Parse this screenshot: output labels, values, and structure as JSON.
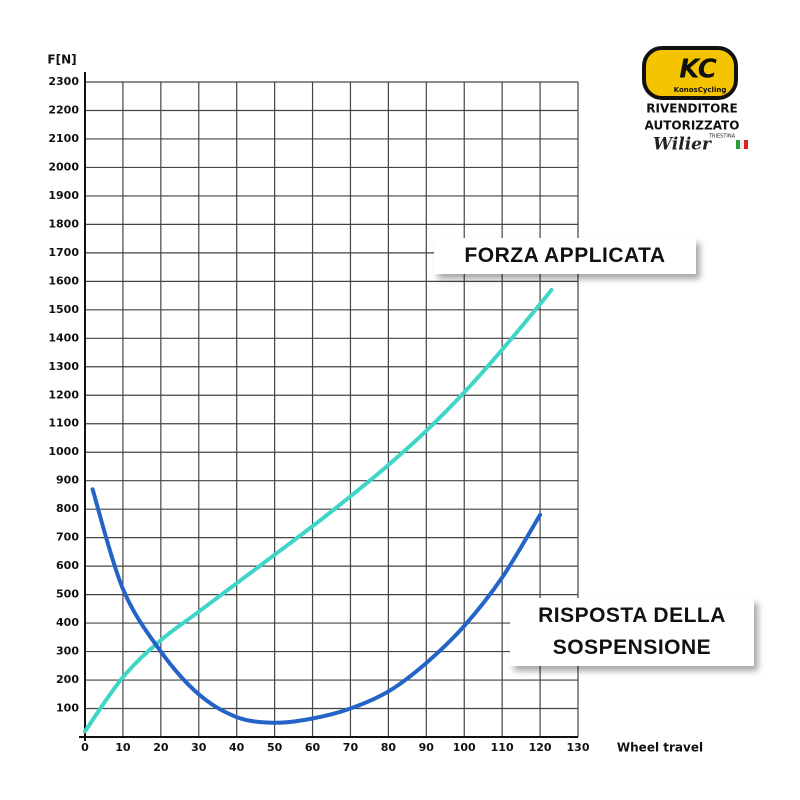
{
  "chart_data": {
    "type": "line",
    "y_label": "F[N]",
    "x_label": "Wheel travel",
    "xlim": [
      0,
      130
    ],
    "xticks": [
      0,
      10,
      20,
      30,
      40,
      50,
      60,
      70,
      80,
      90,
      100,
      110,
      120,
      130
    ],
    "ylim": [
      0,
      2300
    ],
    "yticks": [
      100,
      200,
      300,
      400,
      500,
      600,
      700,
      800,
      900,
      1000,
      1100,
      1200,
      1300,
      1400,
      1500,
      1600,
      1700,
      1800,
      1900,
      2000,
      2100,
      2200,
      2300
    ],
    "grid": true,
    "series": [
      {
        "name": "FORZA APPLICATA",
        "color": "#3fd6c8",
        "x": [
          0,
          10,
          20,
          30,
          40,
          50,
          60,
          70,
          80,
          90,
          100,
          110,
          120,
          123
        ],
        "values": [
          20,
          210,
          340,
          440,
          540,
          640,
          740,
          845,
          955,
          1075,
          1210,
          1360,
          1520,
          1570
        ]
      },
      {
        "name": "RISPOSTA DELLA SOSPENSIONE",
        "color": "#2463c8",
        "x": [
          2,
          10,
          20,
          30,
          40,
          50,
          60,
          70,
          80,
          90,
          100,
          110,
          120
        ],
        "values": [
          870,
          520,
          300,
          150,
          70,
          50,
          65,
          100,
          160,
          260,
          390,
          560,
          780
        ]
      }
    ]
  },
  "logo": {
    "brand": "KC",
    "brand_sub": "KonosCycling",
    "line1": "RIVENDITORE",
    "line2": "AUTORIZZATO",
    "partner": "Wilier",
    "partner_sub": "TRIESTINA"
  }
}
